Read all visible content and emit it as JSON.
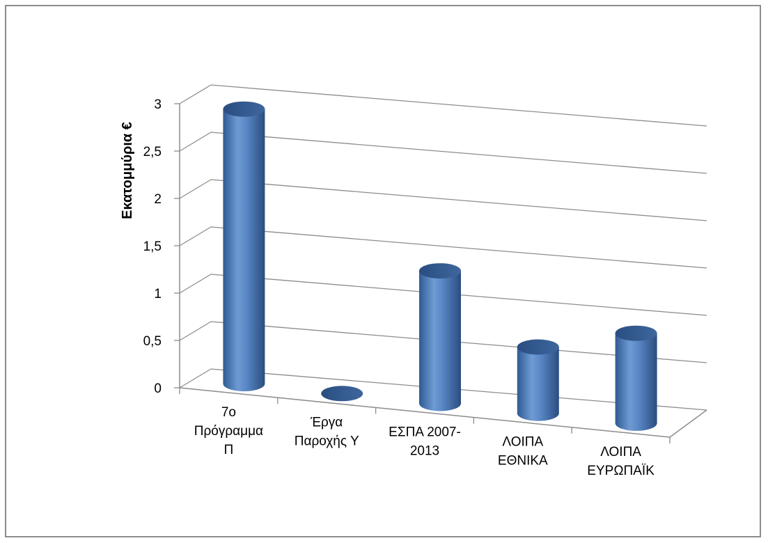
{
  "chart_data": {
    "type": "bar",
    "style": "3d-cylinder",
    "ylabel": "Εκατομμύρια €",
    "ylim": [
      0,
      3
    ],
    "yticks": [
      "0",
      "0,5",
      "1",
      "1,5",
      "2",
      "2,5",
      "3"
    ],
    "categories": [
      [
        "7ο",
        "Πρόγραμμα",
        "Π"
      ],
      [
        "Έργα",
        "Παροχής Υ"
      ],
      [
        "ΕΣΠΑ 2007-",
        "2013"
      ],
      [
        "ΛΟΙΠΑ",
        "ΕΘΝΙΚΑ"
      ],
      [
        "ΛΟΙΠΑ",
        "ΕΥΡΩΠΑΪΚ"
      ]
    ],
    "values": [
      2.9,
      0.0,
      1.4,
      0.7,
      0.95
    ],
    "grid": true,
    "legend": "none",
    "colors": {
      "bar": "#4f81bd",
      "bar_dark": "#2a4d7f",
      "bar_light": "#7fa6d8",
      "grid": "#8c8c8c"
    }
  }
}
